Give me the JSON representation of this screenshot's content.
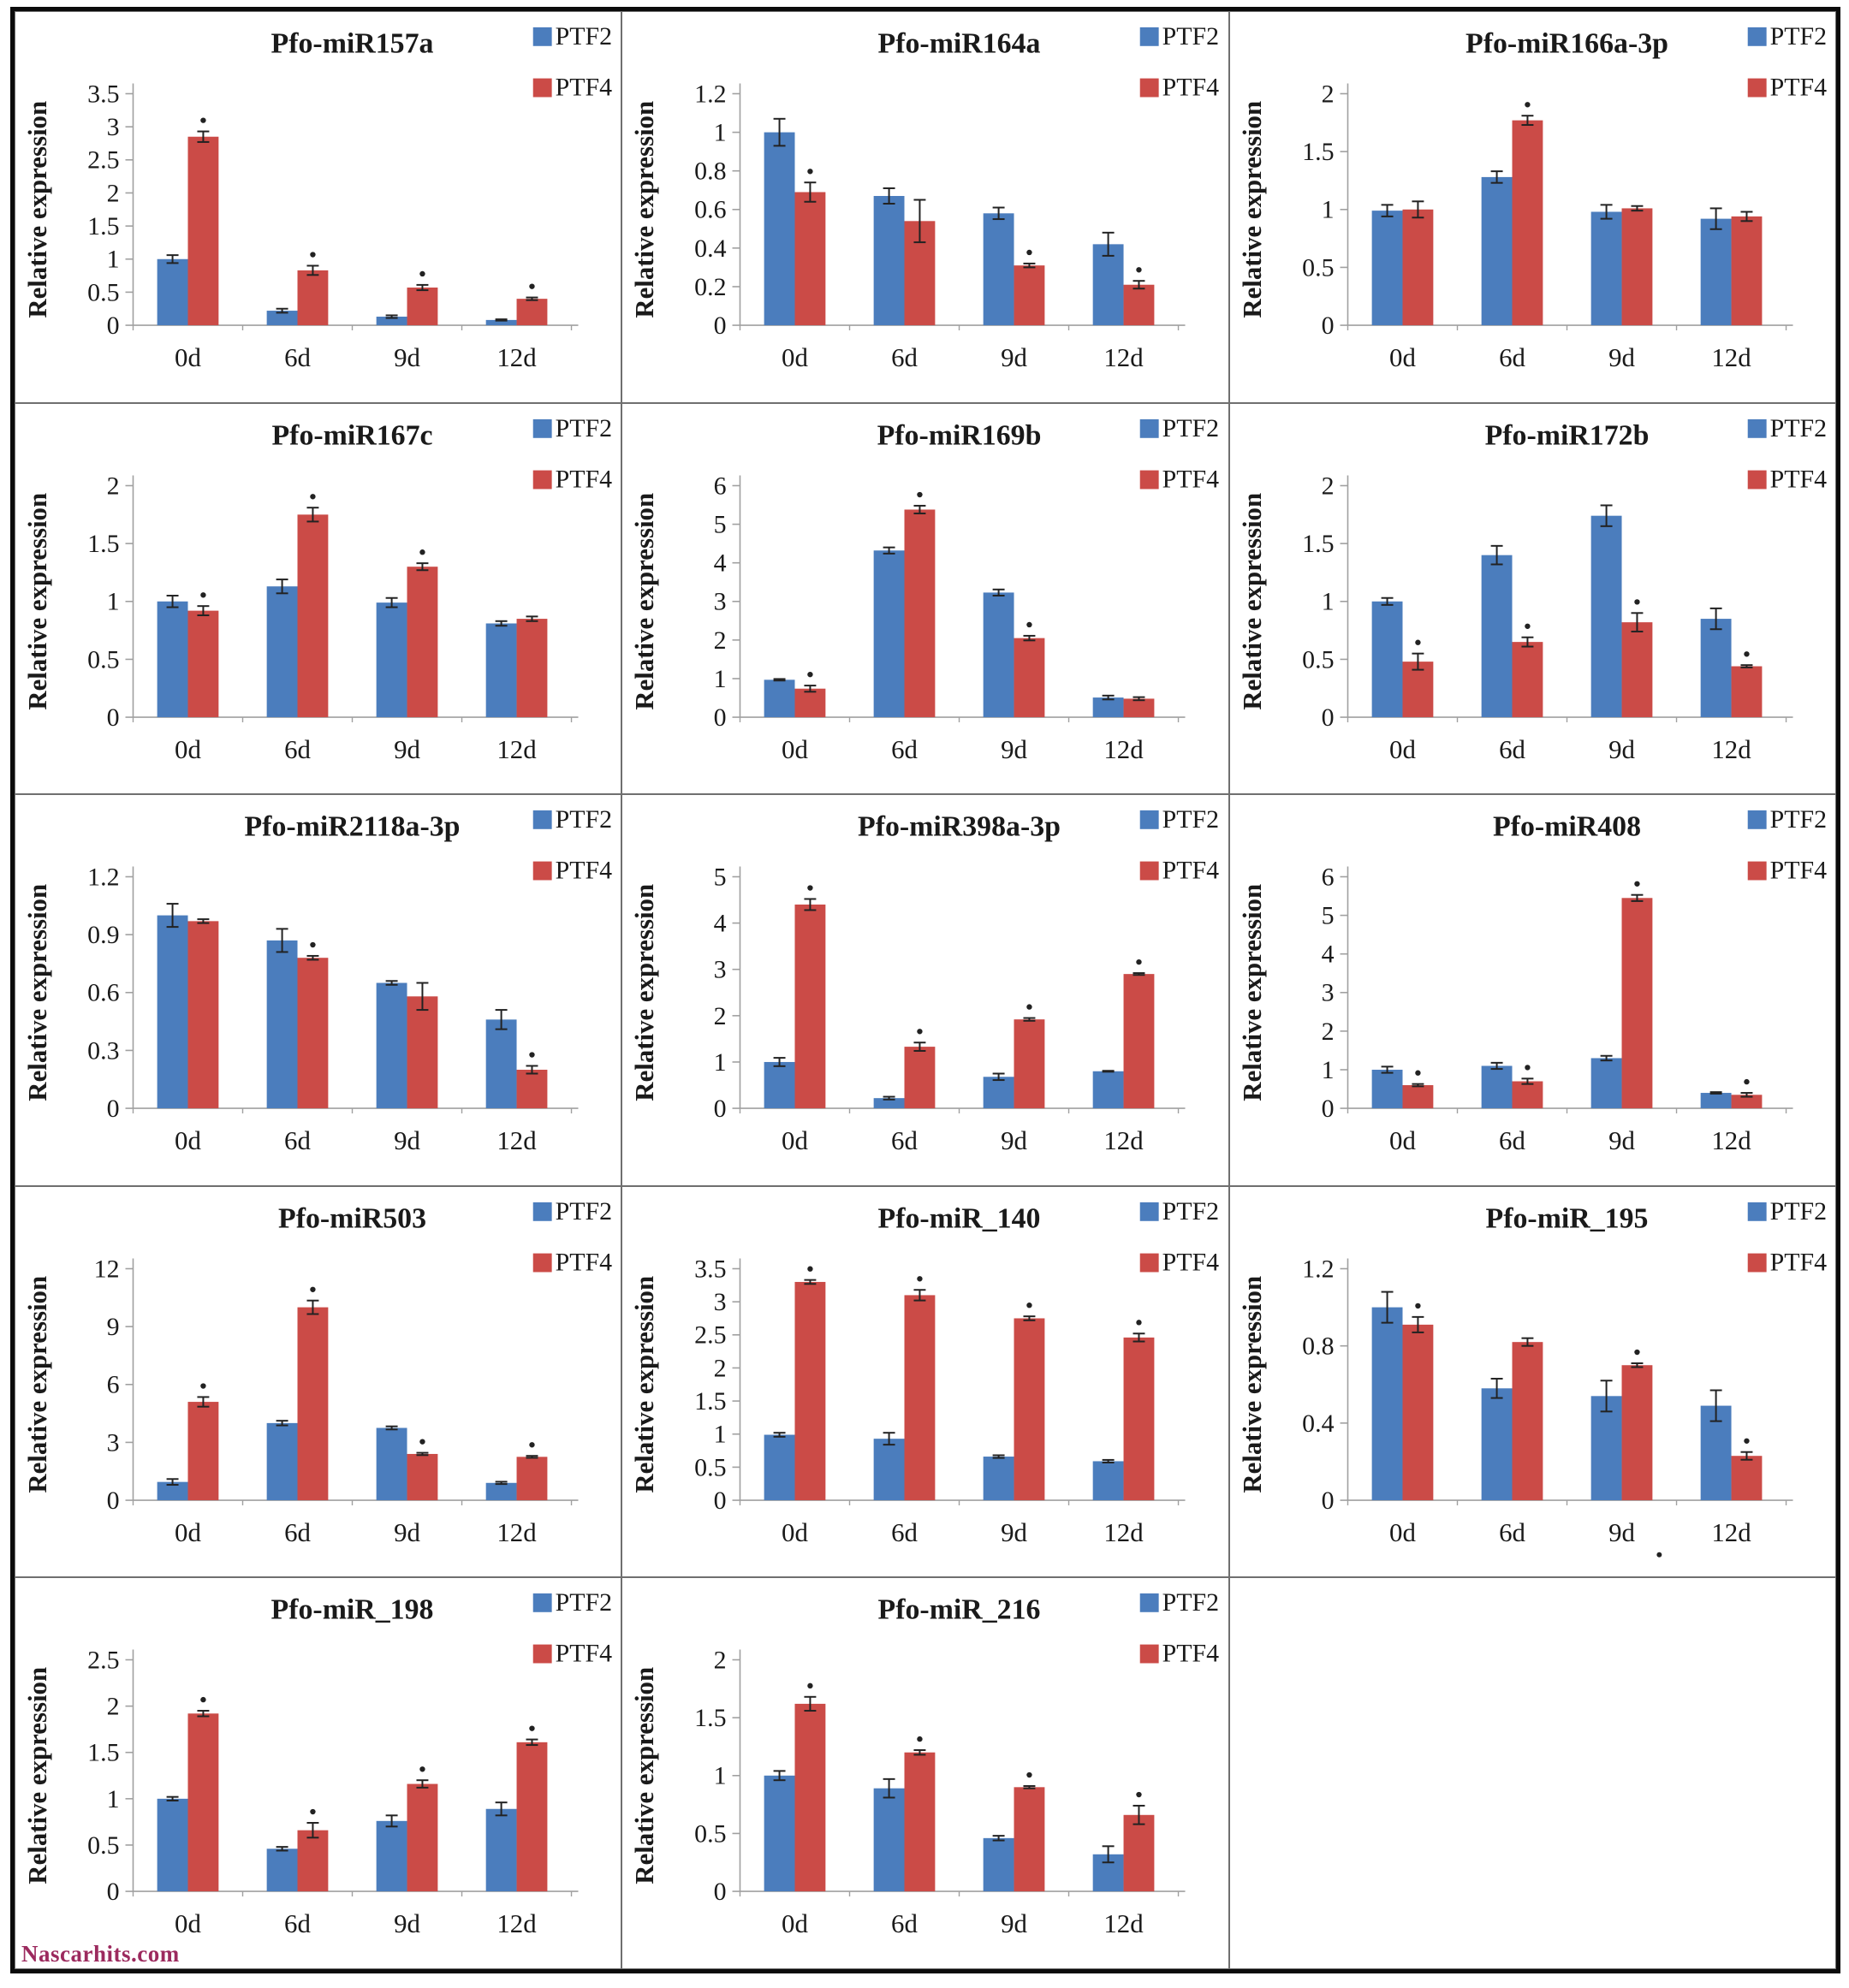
{
  "figure": {
    "watermark": "Nascarhits.com",
    "ylabel": "Relative expression",
    "legend": [
      "PTF2",
      "PTF4"
    ],
    "categories": [
      "0d",
      "6d",
      "9d",
      "12d"
    ],
    "colors": {
      "ptf2": "#4b7dbd",
      "ptf4": "#cb4b47",
      "axis": "#a0a0a0",
      "text": "#1a1a1a",
      "error_bar": "#222222",
      "watermark": "#9c2a5e"
    }
  },
  "chart_data": [
    {
      "type": "bar",
      "title": "Pfo-miR157a",
      "ylabel": "Relative expression",
      "categories": [
        "0d",
        "6d",
        "9d",
        "12d"
      ],
      "ylim": [
        0,
        3.5
      ],
      "yticks": [
        0,
        0.5,
        1,
        1.5,
        2,
        2.5,
        3,
        3.5
      ],
      "series": [
        {
          "name": "PTF2",
          "values": [
            1.0,
            0.22,
            0.13,
            0.08
          ],
          "errors": [
            0.06,
            0.03,
            0.02,
            0.01
          ]
        },
        {
          "name": "PTF4",
          "values": [
            2.85,
            0.83,
            0.57,
            0.4
          ],
          "errors": [
            0.08,
            0.07,
            0.04,
            0.02
          ]
        }
      ],
      "sig_ptf4": [
        true,
        true,
        true,
        true
      ]
    },
    {
      "type": "bar",
      "title": "Pfo-miR164a",
      "ylabel": "Relative expression",
      "categories": [
        "0d",
        "6d",
        "9d",
        "12d"
      ],
      "ylim": [
        0,
        1.2
      ],
      "yticks": [
        0,
        0.2,
        0.4,
        0.6,
        0.8,
        1,
        1.2
      ],
      "series": [
        {
          "name": "PTF2",
          "values": [
            1.0,
            0.67,
            0.58,
            0.42
          ],
          "errors": [
            0.07,
            0.04,
            0.03,
            0.06
          ]
        },
        {
          "name": "PTF4",
          "values": [
            0.69,
            0.54,
            0.31,
            0.21
          ],
          "errors": [
            0.05,
            0.11,
            0.01,
            0.02
          ]
        }
      ],
      "sig_ptf4": [
        true,
        false,
        true,
        true
      ]
    },
    {
      "type": "bar",
      "title": "Pfo-miR166a-3p",
      "ylabel": "Relative expression",
      "categories": [
        "0d",
        "6d",
        "9d",
        "12d"
      ],
      "ylim": [
        0,
        2
      ],
      "yticks": [
        0,
        0.5,
        1,
        1.5,
        2
      ],
      "series": [
        {
          "name": "PTF2",
          "values": [
            0.99,
            1.28,
            0.98,
            0.92
          ],
          "errors": [
            0.05,
            0.05,
            0.06,
            0.09
          ]
        },
        {
          "name": "PTF4",
          "values": [
            1.0,
            1.77,
            1.01,
            0.94
          ],
          "errors": [
            0.07,
            0.04,
            0.02,
            0.04
          ]
        }
      ],
      "sig_ptf4": [
        false,
        true,
        false,
        false
      ]
    },
    {
      "type": "bar",
      "title": "Pfo-miR167c",
      "ylabel": "Relative expression",
      "categories": [
        "0d",
        "6d",
        "9d",
        "12d"
      ],
      "ylim": [
        0,
        2
      ],
      "yticks": [
        0,
        0.5,
        1,
        1.5,
        2
      ],
      "series": [
        {
          "name": "PTF2",
          "values": [
            1.0,
            1.13,
            0.99,
            0.81
          ],
          "errors": [
            0.05,
            0.06,
            0.04,
            0.02
          ]
        },
        {
          "name": "PTF4",
          "values": [
            0.92,
            1.75,
            1.3,
            0.85
          ],
          "errors": [
            0.04,
            0.06,
            0.03,
            0.02
          ]
        }
      ],
      "sig_ptf4": [
        true,
        true,
        true,
        false
      ]
    },
    {
      "type": "bar",
      "title": "Pfo-miR169b",
      "ylabel": "Relative expression",
      "categories": [
        "0d",
        "6d",
        "9d",
        "12d"
      ],
      "ylim": [
        0,
        6
      ],
      "yticks": [
        0,
        1,
        2,
        3,
        4,
        5,
        6
      ],
      "series": [
        {
          "name": "PTF2",
          "values": [
            0.97,
            4.32,
            3.23,
            0.51
          ],
          "errors": [
            0.02,
            0.08,
            0.08,
            0.05
          ]
        },
        {
          "name": "PTF4",
          "values": [
            0.74,
            5.38,
            2.05,
            0.48
          ],
          "errors": [
            0.08,
            0.1,
            0.06,
            0.04
          ]
        }
      ],
      "sig_ptf4": [
        true,
        true,
        true,
        false
      ]
    },
    {
      "type": "bar",
      "title": "Pfo-miR172b",
      "ylabel": "Relative expression",
      "categories": [
        "0d",
        "6d",
        "9d",
        "12d"
      ],
      "ylim": [
        0,
        2
      ],
      "yticks": [
        0,
        0.5,
        1,
        1.5,
        2
      ],
      "series": [
        {
          "name": "PTF2",
          "values": [
            1.0,
            1.4,
            1.74,
            0.85
          ],
          "errors": [
            0.03,
            0.08,
            0.09,
            0.09
          ]
        },
        {
          "name": "PTF4",
          "values": [
            0.48,
            0.65,
            0.82,
            0.44
          ],
          "errors": [
            0.07,
            0.04,
            0.08,
            0.01
          ]
        }
      ],
      "sig_ptf4": [
        true,
        true,
        true,
        true
      ]
    },
    {
      "type": "bar",
      "title": "Pfo-miR2118a-3p",
      "ylabel": "Relative expression",
      "categories": [
        "0d",
        "6d",
        "9d",
        "12d"
      ],
      "ylim": [
        0,
        1.2
      ],
      "yticks": [
        0,
        0.3,
        0.6,
        0.9,
        1.2
      ],
      "series": [
        {
          "name": "PTF2",
          "values": [
            1.0,
            0.87,
            0.65,
            0.46
          ],
          "errors": [
            0.06,
            0.06,
            0.01,
            0.05
          ]
        },
        {
          "name": "PTF4",
          "values": [
            0.97,
            0.78,
            0.58,
            0.2
          ],
          "errors": [
            0.01,
            0.01,
            0.07,
            0.02
          ]
        }
      ],
      "sig_ptf4": [
        false,
        true,
        false,
        true
      ]
    },
    {
      "type": "bar",
      "title": "Pfo-miR398a-3p",
      "ylabel": "Relative expression",
      "categories": [
        "0d",
        "6d",
        "9d",
        "12d"
      ],
      "ylim": [
        0,
        5
      ],
      "yticks": [
        0,
        1,
        2,
        3,
        4,
        5
      ],
      "series": [
        {
          "name": "PTF2",
          "values": [
            1.0,
            0.22,
            0.68,
            0.8
          ],
          "errors": [
            0.09,
            0.03,
            0.07,
            0.01
          ]
        },
        {
          "name": "PTF4",
          "values": [
            4.4,
            1.33,
            1.92,
            2.9
          ],
          "errors": [
            0.12,
            0.09,
            0.03,
            0.02
          ]
        }
      ],
      "sig_ptf4": [
        true,
        true,
        true,
        true
      ]
    },
    {
      "type": "bar",
      "title": "Pfo-miR408",
      "ylabel": "Relative expression",
      "categories": [
        "0d",
        "6d",
        "9d",
        "12d"
      ],
      "ylim": [
        0,
        6
      ],
      "yticks": [
        0,
        1,
        2,
        3,
        4,
        5,
        6
      ],
      "series": [
        {
          "name": "PTF2",
          "values": [
            1.0,
            1.1,
            1.3,
            0.4
          ],
          "errors": [
            0.08,
            0.08,
            0.06,
            0.02
          ]
        },
        {
          "name": "PTF4",
          "values": [
            0.6,
            0.7,
            5.45,
            0.35
          ],
          "errors": [
            0.03,
            0.07,
            0.08,
            0.05
          ]
        }
      ],
      "sig_ptf4": [
        true,
        true,
        true,
        true
      ]
    },
    {
      "type": "bar",
      "title": "Pfo-miR503",
      "ylabel": "Relative expression",
      "categories": [
        "0d",
        "6d",
        "9d",
        "12d"
      ],
      "ylim": [
        0,
        12
      ],
      "yticks": [
        0,
        3,
        6,
        9,
        12
      ],
      "series": [
        {
          "name": "PTF2",
          "values": [
            0.95,
            4.0,
            3.75,
            0.9
          ],
          "errors": [
            0.15,
            0.12,
            0.08,
            0.06
          ]
        },
        {
          "name": "PTF4",
          "values": [
            5.1,
            10.0,
            2.4,
            2.25
          ],
          "errors": [
            0.25,
            0.35,
            0.06,
            0.05
          ]
        }
      ],
      "sig_ptf4": [
        true,
        true,
        true,
        true
      ]
    },
    {
      "type": "bar",
      "title": "Pfo-miR_140",
      "ylabel": "Relative expression",
      "categories": [
        "0d",
        "6d",
        "9d",
        "12d"
      ],
      "ylim": [
        0,
        3.5
      ],
      "yticks": [
        0,
        0.5,
        1,
        1.5,
        2,
        2.5,
        3,
        3.5
      ],
      "series": [
        {
          "name": "PTF2",
          "values": [
            0.99,
            0.93,
            0.66,
            0.59
          ],
          "errors": [
            0.03,
            0.09,
            0.02,
            0.02
          ]
        },
        {
          "name": "PTF4",
          "values": [
            3.3,
            3.1,
            2.75,
            2.46
          ],
          "errors": [
            0.03,
            0.08,
            0.03,
            0.06
          ]
        }
      ],
      "sig_ptf4": [
        true,
        true,
        true,
        true
      ]
    },
    {
      "type": "bar",
      "title": "Pfo-miR_195",
      "ylabel": "Relative expression",
      "categories": [
        "0d",
        "6d",
        "9d",
        "12d"
      ],
      "ylim": [
        0,
        1.2
      ],
      "yticks": [
        0,
        0.4,
        0.8,
        1.2
      ],
      "series": [
        {
          "name": "PTF2",
          "values": [
            1.0,
            0.58,
            0.54,
            0.49
          ],
          "errors": [
            0.08,
            0.05,
            0.08,
            0.08
          ]
        },
        {
          "name": "PTF4",
          "values": [
            0.91,
            0.82,
            0.7,
            0.23
          ],
          "errors": [
            0.04,
            0.02,
            0.01,
            0.02
          ]
        }
      ],
      "sig_ptf4": [
        true,
        false,
        true,
        true
      ],
      "stray_dot_after_category_index": 2
    },
    {
      "type": "bar",
      "title": "Pfo-miR_198",
      "ylabel": "Relative expression",
      "categories": [
        "0d",
        "6d",
        "9d",
        "12d"
      ],
      "ylim": [
        0,
        2.5
      ],
      "yticks": [
        0,
        0.5,
        1,
        1.5,
        2,
        2.5
      ],
      "series": [
        {
          "name": "PTF2",
          "values": [
            1.0,
            0.46,
            0.76,
            0.89
          ],
          "errors": [
            0.02,
            0.02,
            0.06,
            0.07
          ]
        },
        {
          "name": "PTF4",
          "values": [
            1.92,
            0.66,
            1.16,
            1.61
          ],
          "errors": [
            0.03,
            0.08,
            0.04,
            0.03
          ]
        }
      ],
      "sig_ptf4": [
        true,
        true,
        true,
        true
      ]
    },
    {
      "type": "bar",
      "title": "Pfo-miR_216",
      "ylabel": "Relative expression",
      "categories": [
        "0d",
        "6d",
        "9d",
        "12d"
      ],
      "ylim": [
        0,
        2
      ],
      "yticks": [
        0,
        0.5,
        1,
        1.5,
        2
      ],
      "series": [
        {
          "name": "PTF2",
          "values": [
            1.0,
            0.89,
            0.46,
            0.32
          ],
          "errors": [
            0.04,
            0.08,
            0.02,
            0.07
          ]
        },
        {
          "name": "PTF4",
          "values": [
            1.62,
            1.2,
            0.9,
            0.66
          ],
          "errors": [
            0.06,
            0.02,
            0.01,
            0.08
          ]
        }
      ],
      "sig_ptf4": [
        true,
        true,
        true,
        true
      ]
    }
  ]
}
